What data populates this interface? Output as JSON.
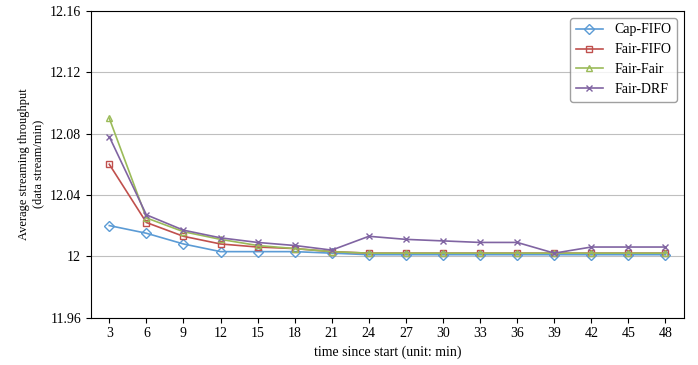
{
  "chart_data": {
    "type": "line",
    "x_label": "time since start (unit: min)",
    "y_label": "Average streaming throughput\n(data stream/min)",
    "x": [
      3,
      6,
      9,
      12,
      15,
      18,
      21,
      24,
      27,
      30,
      33,
      36,
      39,
      42,
      45,
      48
    ],
    "series": [
      {
        "name": "Cap-FIFO",
        "color": "#5b9bd5",
        "marker": "diamond",
        "values": [
          12.02,
          12.015,
          12.008,
          12.003,
          12.003,
          12.003,
          12.002,
          12.001,
          12.001,
          12.001,
          12.001,
          12.001,
          12.001,
          12.001,
          12.001,
          12.001
        ]
      },
      {
        "name": "Fair-FIFO",
        "color": "#c0504d",
        "marker": "square",
        "values": [
          12.06,
          12.022,
          12.013,
          12.008,
          12.006,
          12.005,
          12.003,
          12.002,
          12.002,
          12.002,
          12.002,
          12.002,
          12.002,
          12.002,
          12.002,
          12.002
        ]
      },
      {
        "name": "Fair-Fair",
        "color": "#9bbb59",
        "marker": "triangle",
        "values": [
          12.09,
          12.025,
          12.016,
          12.011,
          12.007,
          12.005,
          12.003,
          12.002,
          12.002,
          12.002,
          12.002,
          12.002,
          12.002,
          12.002,
          12.002,
          12.002
        ]
      },
      {
        "name": "Fair-DRF",
        "color": "#8064a2",
        "marker": "x",
        "values": [
          12.078,
          12.027,
          12.017,
          12.012,
          12.009,
          12.007,
          12.004,
          12.013,
          12.011,
          12.01,
          12.009,
          12.009,
          12.002,
          12.006,
          12.006,
          12.006
        ]
      }
    ],
    "xlim": [
      1.5,
      49.5
    ],
    "xticks": [
      3,
      6,
      9,
      12,
      15,
      18,
      21,
      24,
      27,
      30,
      33,
      36,
      39,
      42,
      45,
      48
    ],
    "ylim": [
      11.96,
      12.16
    ],
    "yticks": [
      11.96,
      12,
      12.04,
      12.08,
      12.12,
      12.16
    ],
    "grid": true,
    "legend": "upper right"
  }
}
